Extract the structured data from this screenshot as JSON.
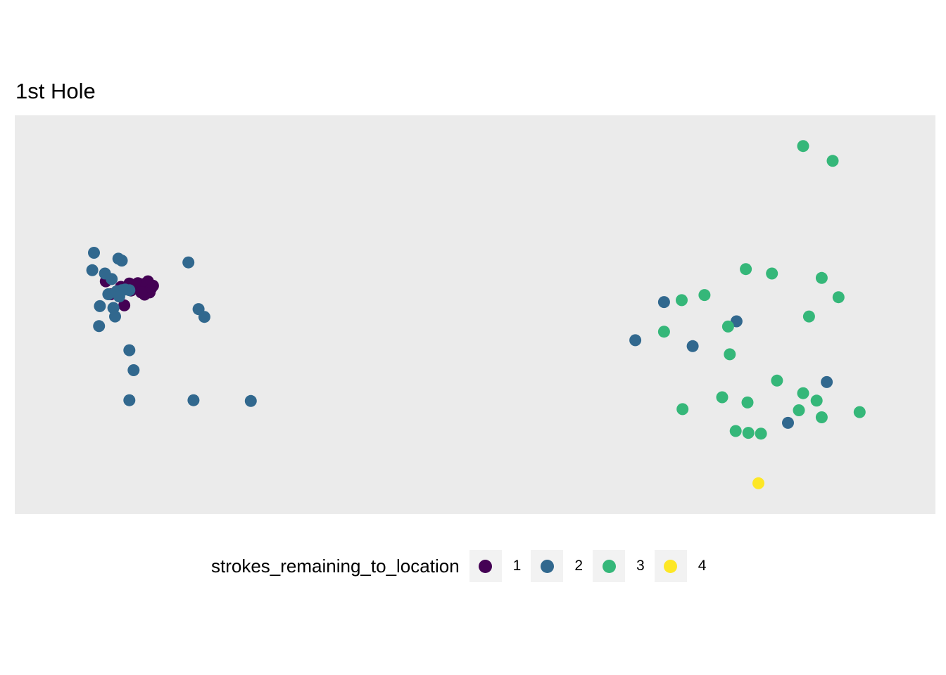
{
  "chart_data": {
    "type": "scatter",
    "title": "1st Hole",
    "xlabel": "",
    "ylabel": "",
    "xlim": [
      0,
      1000
    ],
    "ylim": [
      0,
      1000
    ],
    "grid": false,
    "axes_visible": false,
    "panel_color": "#ebebeb",
    "legend": {
      "title": "strokes_remaining_to_location",
      "placement": "bottom",
      "entries": [
        {
          "label": "1",
          "color": "#440154"
        },
        {
          "label": "2",
          "color": "#31688e"
        },
        {
          "label": "3",
          "color": "#35b779"
        },
        {
          "label": "4",
          "color": "#fde725"
        }
      ]
    },
    "series": [
      {
        "name": "1",
        "color": "#440154",
        "points": [
          [
            62,
            410
          ],
          [
            68,
            445
          ],
          [
            80,
            425
          ],
          [
            84,
            475
          ],
          [
            90,
            416
          ],
          [
            92,
            435
          ],
          [
            95,
            420
          ],
          [
            100,
            415
          ],
          [
            104,
            426
          ],
          [
            106,
            418
          ],
          [
            108,
            446
          ],
          [
            110,
            420
          ],
          [
            112,
            410
          ],
          [
            114,
            440
          ],
          [
            116,
            428
          ],
          [
            118,
            422
          ],
          [
            104,
            440
          ]
        ]
      },
      {
        "name": "2",
        "color": "#31688e",
        "points": [
          [
            48,
            333
          ],
          [
            46,
            380
          ],
          [
            61,
            389
          ],
          [
            77,
            349
          ],
          [
            81,
            354
          ],
          [
            69,
            404
          ],
          [
            65,
            445
          ],
          [
            71,
            482
          ],
          [
            55,
            477
          ],
          [
            54,
            531
          ],
          [
            73,
            505
          ],
          [
            75,
            437
          ],
          [
            85,
            432
          ],
          [
            81,
            434
          ],
          [
            90,
            434
          ],
          [
            78,
            451
          ],
          [
            90,
            596
          ],
          [
            95,
            650
          ],
          [
            90,
            731
          ],
          [
            160,
            359
          ],
          [
            172,
            485
          ],
          [
            179,
            506
          ],
          [
            166,
            731
          ],
          [
            234,
            733
          ],
          [
            724,
            466
          ],
          [
            690,
            569
          ],
          [
            758,
            585
          ],
          [
            810,
            518
          ],
          [
            917,
            682
          ],
          [
            871,
            792
          ]
        ]
      },
      {
        "name": "3",
        "color": "#35b779",
        "points": [
          [
            889,
            45
          ],
          [
            924,
            85
          ],
          [
            821,
            377
          ],
          [
            852,
            389
          ],
          [
            911,
            401
          ],
          [
            931,
            453
          ],
          [
            772,
            447
          ],
          [
            745,
            461
          ],
          [
            896,
            505
          ],
          [
            800,
            532
          ],
          [
            724,
            546
          ],
          [
            802,
            607
          ],
          [
            858,
            678
          ],
          [
            889,
            712
          ],
          [
            905,
            732
          ],
          [
            793,
            723
          ],
          [
            823,
            737
          ],
          [
            746,
            755
          ],
          [
            884,
            758
          ],
          [
            911,
            777
          ],
          [
            956,
            763
          ],
          [
            809,
            814
          ],
          [
            824,
            819
          ],
          [
            839,
            821
          ]
        ]
      },
      {
        "name": "4",
        "color": "#fde725",
        "points": [
          [
            836,
            955
          ]
        ]
      }
    ]
  }
}
